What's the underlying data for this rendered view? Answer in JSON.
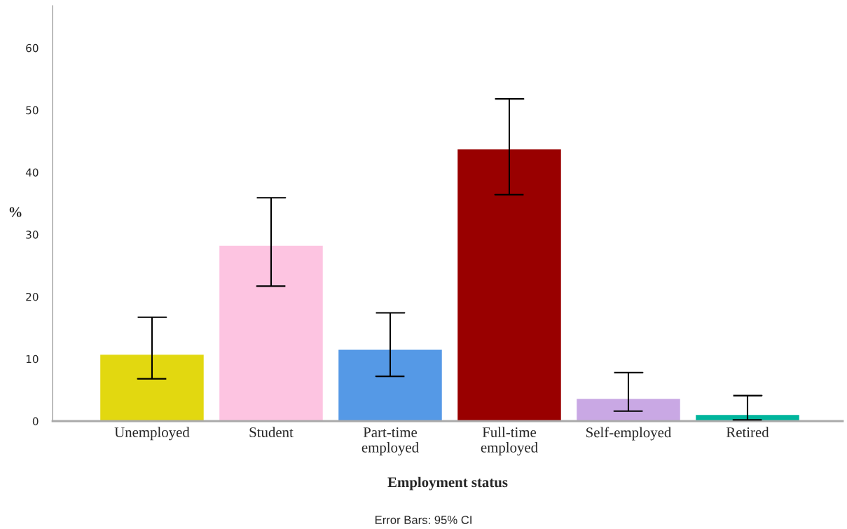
{
  "chart_data": {
    "type": "bar",
    "xlabel": "Employment status",
    "ylabel": "%",
    "categories": [
      "Unemployed",
      "Student",
      "Part-time\nemployed",
      "Full-time\nemployed",
      "Self-employed",
      "Retired"
    ],
    "values": [
      10.8,
      28.3,
      11.6,
      43.8,
      3.7,
      1.1
    ],
    "colors": [
      "#e2d810",
      "#fdc4e1",
      "#5599e6",
      "#990000",
      "#c9a8e4",
      "#00b59c"
    ],
    "errors": [
      [
        6.8,
        16.7
      ],
      [
        21.7,
        35.9
      ],
      [
        7.2,
        17.4
      ],
      [
        36.4,
        51.8
      ],
      [
        1.6,
        7.8
      ],
      [
        0.2,
        4.1
      ]
    ],
    "ylim": [
      0,
      66.8
    ],
    "yticks": [
      0,
      10,
      20,
      30,
      40,
      50,
      60
    ],
    "grid": false,
    "legend": false,
    "annotations": [
      "Error Bars: 95% CI"
    ]
  }
}
